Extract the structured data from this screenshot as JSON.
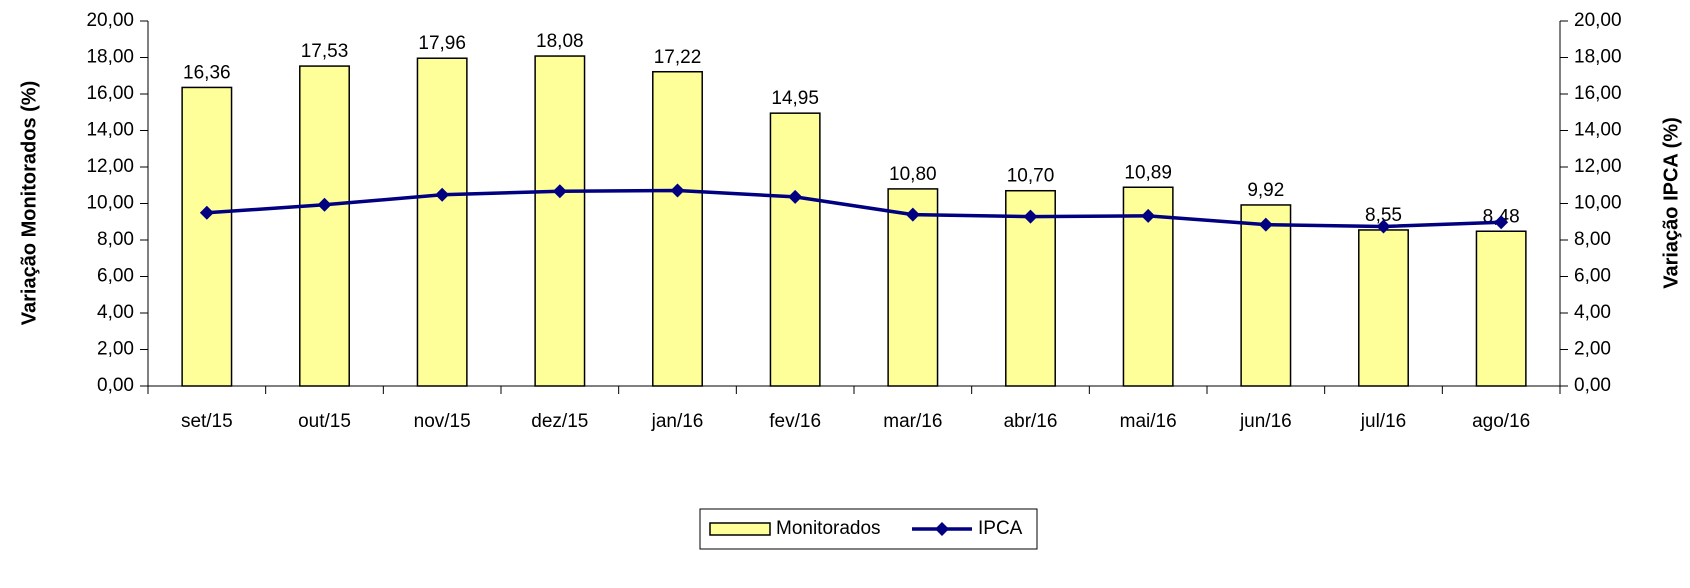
{
  "chart_data": {
    "type": "bar_line",
    "y_label": "Variação Monitorados (%)",
    "y2_label": "Variação IPCA (%)",
    "categories": [
      "set/15",
      "out/15",
      "nov/15",
      "dez/15",
      "jan/16",
      "fev/16",
      "mar/16",
      "abr/16",
      "mai/16",
      "jun/16",
      "jul/16",
      "ago/16"
    ],
    "series": [
      {
        "name": "Monitorados",
        "type": "bar",
        "color": "#ffff99",
        "values": [
          16.36,
          17.53,
          17.96,
          18.08,
          17.22,
          14.95,
          10.8,
          10.7,
          10.89,
          9.92,
          8.55,
          8.48
        ],
        "value_labels": [
          "16,36",
          "17,53",
          "17,96",
          "18,08",
          "17,22",
          "14,95",
          "10,80",
          "10,70",
          "10,89",
          "9,92",
          "8,55",
          "8,48"
        ]
      },
      {
        "name": "IPCA",
        "type": "line",
        "axis": "y2",
        "color": "#000080",
        "values": [
          9.49,
          9.93,
          10.48,
          10.67,
          10.71,
          10.36,
          9.39,
          9.28,
          9.32,
          8.84,
          8.74,
          8.97
        ]
      }
    ],
    "ylim": [
      0,
      20
    ],
    "yticks": [
      {
        "value": 0,
        "label": "0,00"
      },
      {
        "value": 2,
        "label": "2,00"
      },
      {
        "value": 4,
        "label": "4,00"
      },
      {
        "value": 6,
        "label": "6,00"
      },
      {
        "value": 8,
        "label": "8,00"
      },
      {
        "value": 10,
        "label": "10,00"
      },
      {
        "value": 12,
        "label": "12,00"
      },
      {
        "value": 14,
        "label": "14,00"
      },
      {
        "value": 16,
        "label": "16,00"
      },
      {
        "value": 18,
        "label": "18,00"
      },
      {
        "value": 20,
        "label": "20,00"
      }
    ],
    "y2lim": [
      0,
      20
    ],
    "y2ticks": [
      {
        "value": 0,
        "label": "0,00"
      },
      {
        "value": 2,
        "label": "2,00"
      },
      {
        "value": 4,
        "label": "4,00"
      },
      {
        "value": 6,
        "label": "6,00"
      },
      {
        "value": 8,
        "label": "8,00"
      },
      {
        "value": 10,
        "label": "10,00"
      },
      {
        "value": 12,
        "label": "12,00"
      },
      {
        "value": 14,
        "label": "14,00"
      },
      {
        "value": 16,
        "label": "16,00"
      },
      {
        "value": 18,
        "label": "18,00"
      },
      {
        "value": 20,
        "label": "20,00"
      }
    ],
    "legend": "bottom"
  }
}
